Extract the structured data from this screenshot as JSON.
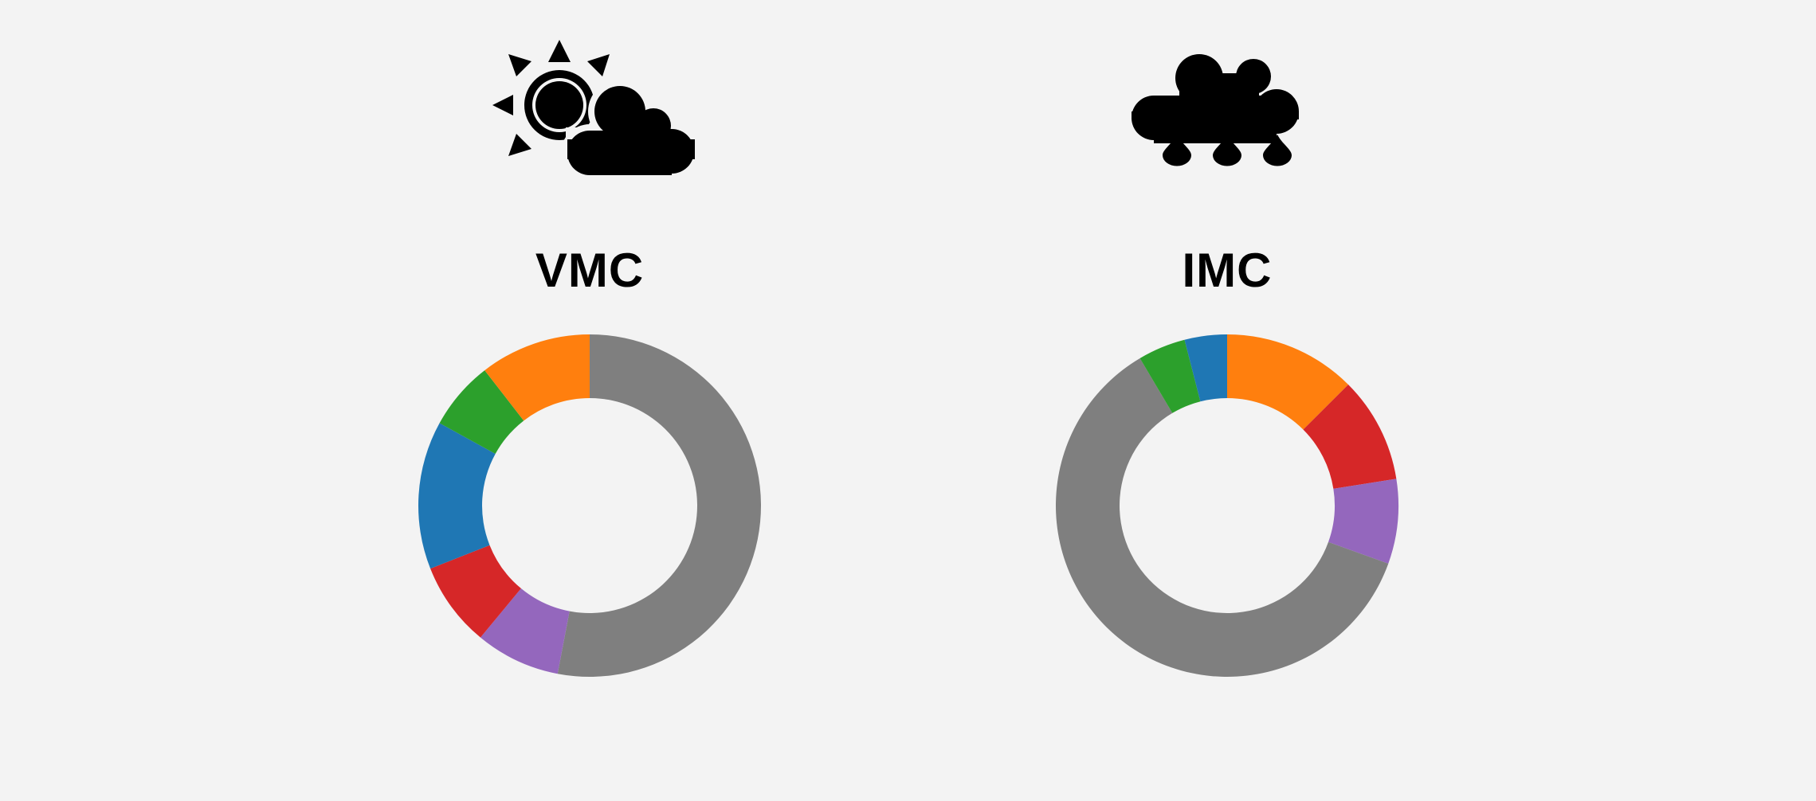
{
  "chart_data": [
    {
      "type": "pie",
      "title": "VMC",
      "icon": "sun-behind-cloud-icon",
      "segments": [
        {
          "color": "#7f7f7f",
          "value": 53.0
        },
        {
          "color": "#9467bd",
          "value": 8.0
        },
        {
          "color": "#d62728",
          "value": 8.0
        },
        {
          "color": "#1f77b4",
          "value": 14.0
        },
        {
          "color": "#2ca02c",
          "value": 6.5
        },
        {
          "color": "#ff7f0e",
          "value": 10.5
        }
      ]
    },
    {
      "type": "pie",
      "title": "IMC",
      "icon": "rain-cloud-icon",
      "segments": [
        {
          "color": "#ff7f0e",
          "value": 12.5
        },
        {
          "color": "#d62728",
          "value": 10.0
        },
        {
          "color": "#9467bd",
          "value": 8.0
        },
        {
          "color": "#7f7f7f",
          "value": 61.0
        },
        {
          "color": "#2ca02c",
          "value": 4.5
        },
        {
          "color": "#1f77b4",
          "value": 4.0
        }
      ]
    }
  ]
}
